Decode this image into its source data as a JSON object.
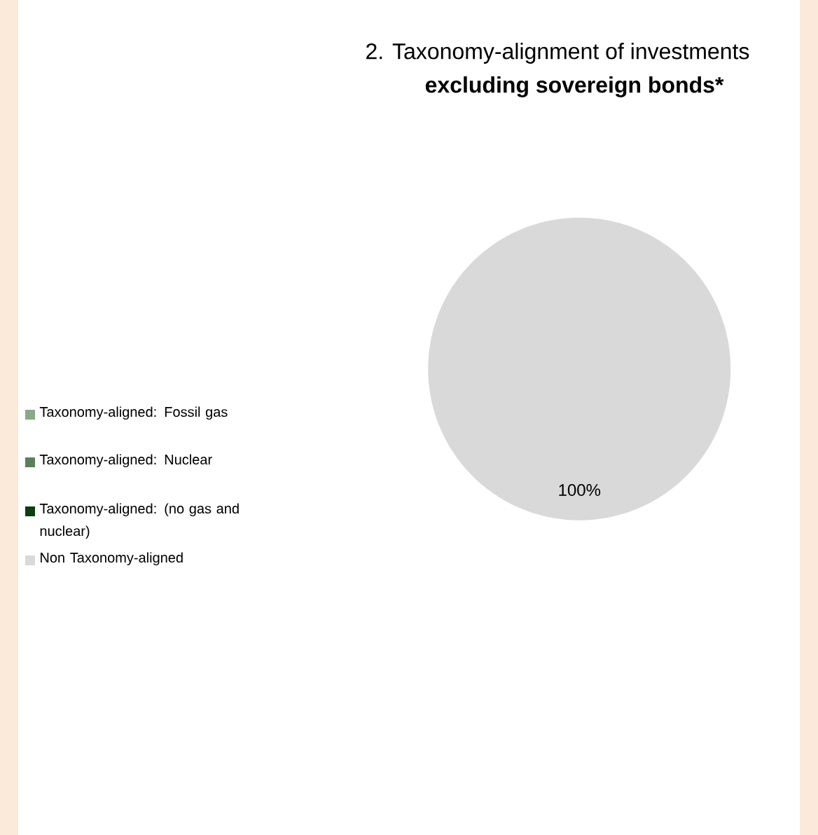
{
  "chart_data": {
    "type": "pie",
    "title": "2.    Taxonomy-alignment of investments",
    "subtitle": "excluding sovereign bonds*",
    "categories": [
      "Taxonomy-aligned: Fossil gas",
      "Taxonomy-aligned: Nuclear",
      "Taxonomy-aligned: (no gas and nuclear)",
      "Non Taxonomy-aligned"
    ],
    "values": [
      0,
      0,
      0,
      100
    ],
    "colors": [
      "#8aa88a",
      "#5b7f5b",
      "#0e3d12",
      "#d9d9d9"
    ],
    "value_labels": [
      null,
      null,
      null,
      "100%"
    ],
    "legend": "left"
  }
}
